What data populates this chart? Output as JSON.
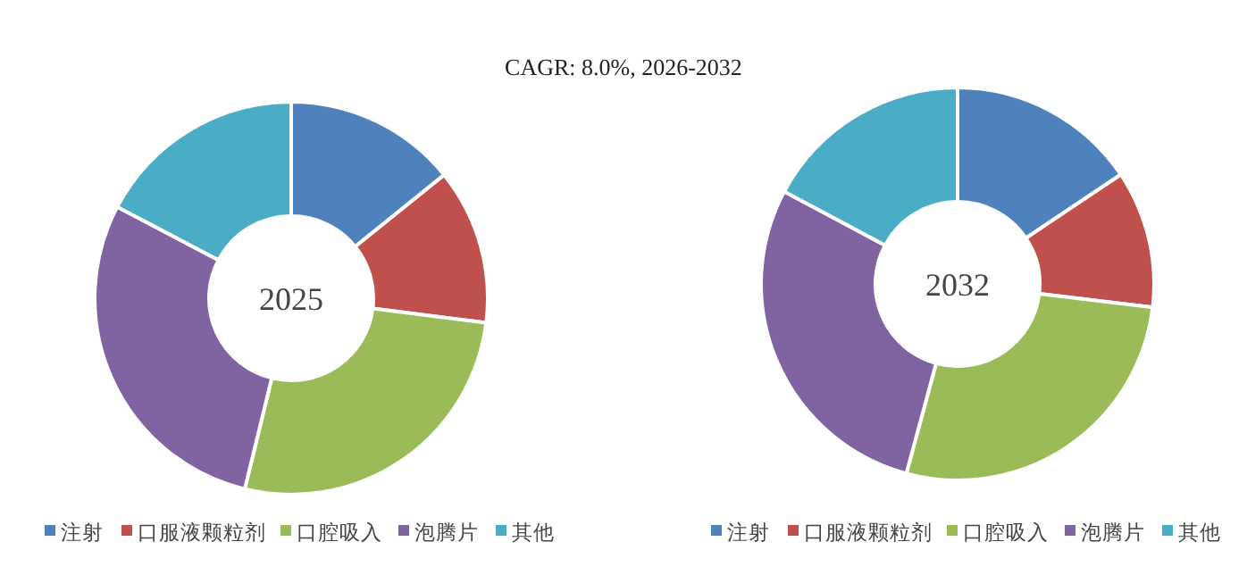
{
  "chart_data": [
    {
      "type": "donut",
      "title": "2025",
      "annotations": [
        "CAGR:  8.0%, 2026-2032"
      ],
      "categories": [
        "注射",
        "口服液颗粒剂",
        "口腔吸入",
        "泡腾片",
        "其他"
      ],
      "values": [
        14.2,
        12.8,
        26.8,
        28.9,
        17.3
      ],
      "colors": [
        "#4f81bd",
        "#c0504d",
        "#9bbb59",
        "#8064a2",
        "#4bacc6"
      ],
      "legend": "bottom"
    },
    {
      "type": "donut",
      "title": "2032",
      "categories": [
        "注射",
        "口服液颗粒剂",
        "口腔吸入",
        "泡腾片",
        "其他"
      ],
      "values": [
        15.6,
        11.3,
        27.3,
        28.6,
        17.2
      ],
      "colors": [
        "#4f81bd",
        "#c0504d",
        "#9bbb59",
        "#8064a2",
        "#4bacc6"
      ],
      "legend": "bottom"
    }
  ]
}
